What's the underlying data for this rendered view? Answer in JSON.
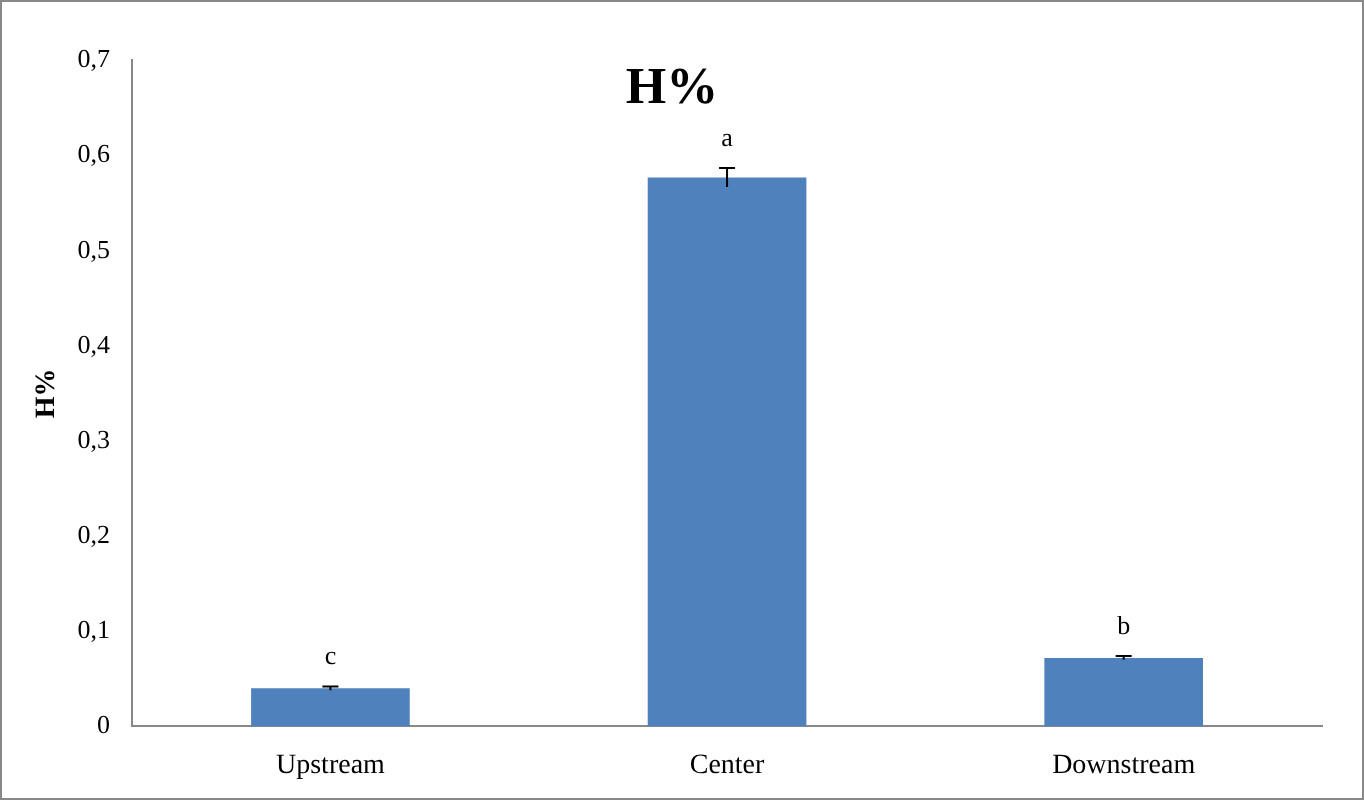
{
  "chart_data": {
    "type": "bar",
    "title": "H%",
    "ylabel": "H%",
    "categories": [
      "Upstream",
      "Center",
      "Downstream"
    ],
    "values": [
      0.04,
      0.577,
      0.072
    ],
    "color": "#4f81bd",
    "errors": [
      0.002,
      0.01,
      0.002
    ],
    "ylim": [
      0,
      0.7
    ],
    "yticks": [
      0,
      {
        "value": 0.1,
        "label": "0,1"
      },
      {
        "value": 0.2,
        "label": "0,2"
      },
      {
        "value": 0.3,
        "label": "0,3"
      },
      {
        "value": 0.4,
        "label": "0,4"
      },
      {
        "value": 0.5,
        "label": "0,5"
      },
      {
        "value": 0.6,
        "label": "0,6"
      },
      {
        "value": 0.7,
        "label": "0,7"
      }
    ],
    "annotations": [
      {
        "text": "c",
        "x": "Upstream",
        "y": 0.042
      },
      {
        "text": "a",
        "x": "Center",
        "y": 0.587
      },
      {
        "text": "b",
        "x": "Downstream",
        "y": 0.074
      }
    ],
    "grid": false,
    "legend": false
  }
}
